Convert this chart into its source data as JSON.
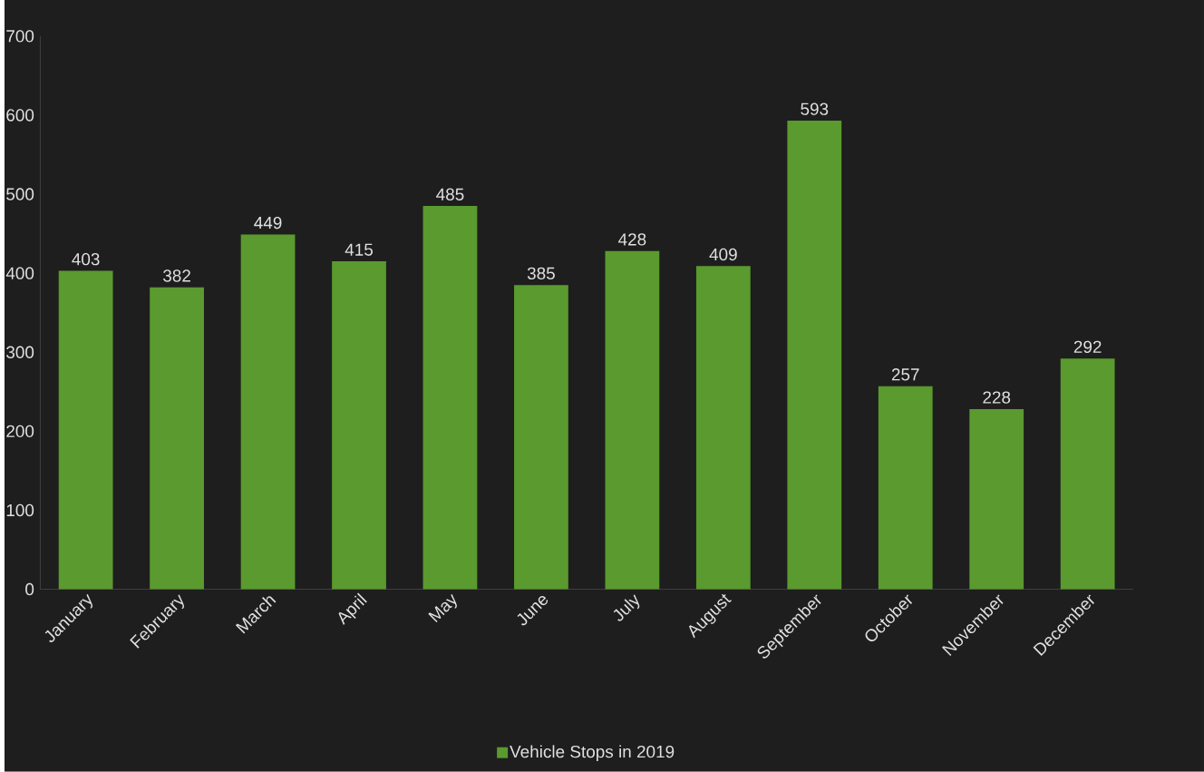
{
  "chart_data": {
    "type": "bar",
    "categories": [
      "January",
      "February",
      "March",
      "April",
      "May",
      "June",
      "July",
      "August",
      "September",
      "October",
      "November",
      "December"
    ],
    "series": [
      {
        "name": "Vehicle Stops in 2019",
        "color": "#5a9a2e",
        "values": [
          403,
          382,
          449,
          415,
          485,
          385,
          428,
          409,
          593,
          257,
          228,
          292
        ]
      }
    ],
    "ylim": [
      0,
      700
    ],
    "yticks": [
      0,
      100,
      200,
      300,
      400,
      500,
      600,
      700
    ],
    "data_labels": true,
    "legend": "bottom"
  }
}
